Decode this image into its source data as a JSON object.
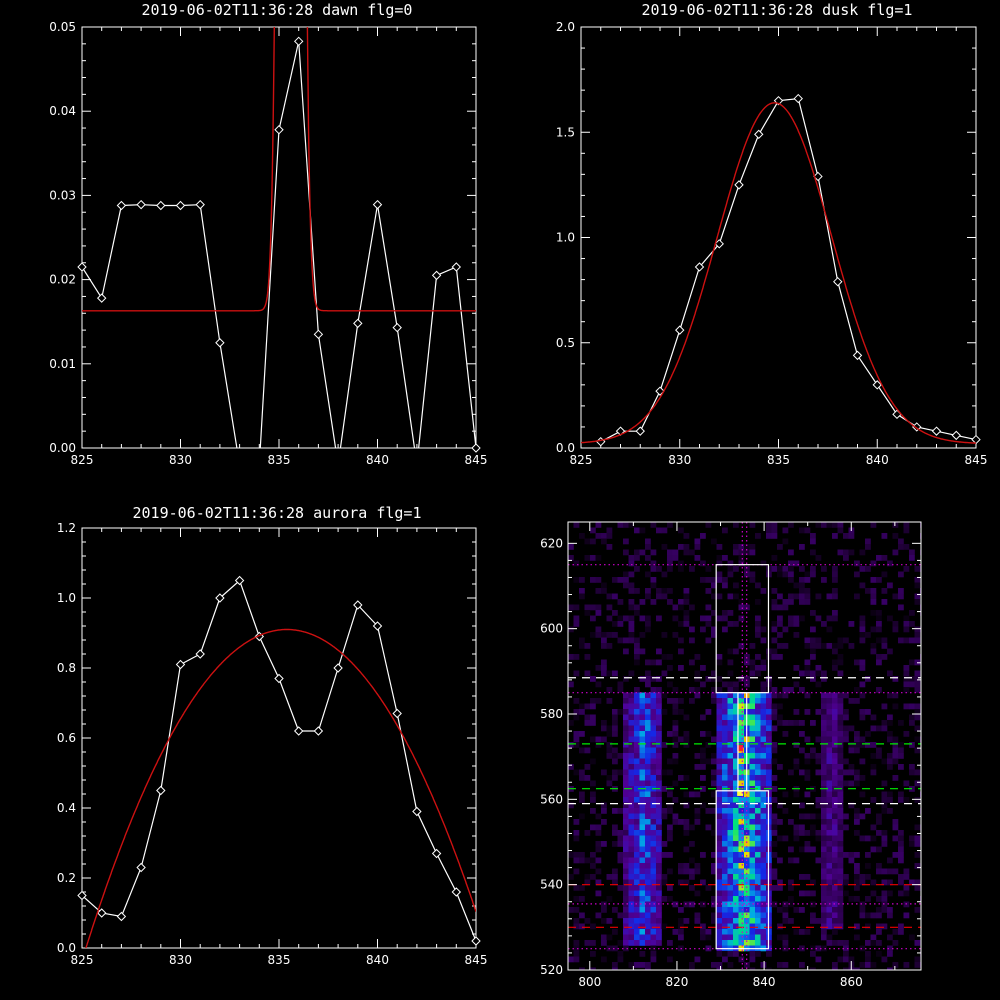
{
  "colors": {
    "background": "#000000",
    "axes": "#ffffff",
    "data": "#ffffff",
    "fit": "#cc1111"
  },
  "charts": {
    "dawn": {
      "title": "2019-06-02T11:36:28 dawn flg=0"
    },
    "dusk": {
      "title": "2019-06-02T11:36:28 dusk flg=1"
    },
    "aurora": {
      "title": "2019-06-02T11:36:28 aurora flg=1"
    },
    "image": {
      "title": ""
    }
  },
  "chart_data": [
    {
      "id": "dawn",
      "type": "line",
      "title": "2019-06-02T11:36:28 dawn flg=0",
      "xlim": [
        825,
        845
      ],
      "ylim": [
        0,
        0.05
      ],
      "xticks": [
        825,
        830,
        835,
        840,
        845
      ],
      "yticks": [
        0.0,
        0.01,
        0.02,
        0.03,
        0.04,
        0.05
      ],
      "ytick_labels": [
        "0.00",
        "0.01",
        "0.02",
        "0.03",
        "0.04",
        "0.05"
      ],
      "grid": false,
      "series": [
        {
          "style": "white line with diamond markers",
          "x": [
            825,
            826,
            827,
            828,
            829,
            830,
            831,
            832,
            833,
            834,
            835,
            836,
            837,
            838,
            839,
            840,
            841,
            842,
            843,
            844,
            845
          ],
          "y": [
            0.0215,
            0.0178,
            0.0288,
            0.0289,
            0.0288,
            0.0288,
            0.0289,
            0.0125,
            -0.002,
            -0.002,
            0.0378,
            0.0483,
            0.0135,
            -0.002,
            0.0148,
            0.0289,
            0.0143,
            -0.002,
            0.0205,
            0.0215,
            0.0
          ]
        },
        {
          "style": "red gaussian fit",
          "fit": {
            "baseline": 0.0163,
            "amplitude": 0.6,
            "center": 835.6,
            "sigma": 0.35
          }
        }
      ]
    },
    {
      "id": "dusk",
      "type": "line",
      "title": "2019-06-02T11:36:28 dusk flg=1",
      "xlim": [
        825,
        845
      ],
      "ylim": [
        0,
        2.0
      ],
      "xticks": [
        825,
        830,
        835,
        840,
        845
      ],
      "yticks": [
        0.0,
        0.5,
        1.0,
        1.5,
        2.0
      ],
      "ytick_labels": [
        "0.0",
        "0.5",
        "1.0",
        "1.5",
        "2.0"
      ],
      "grid": false,
      "series": [
        {
          "style": "white line with diamond markers",
          "x": [
            826,
            827,
            828,
            829,
            830,
            831,
            832,
            833,
            834,
            835,
            836,
            837,
            838,
            839,
            840,
            841,
            842,
            843,
            844,
            845
          ],
          "y": [
            0.03,
            0.08,
            0.08,
            0.27,
            0.56,
            0.86,
            0.97,
            1.25,
            1.49,
            1.65,
            1.66,
            1.29,
            0.79,
            0.44,
            0.3,
            0.16,
            0.1,
            0.08,
            0.06,
            0.04
          ]
        },
        {
          "style": "red gaussian fit",
          "fit": {
            "baseline": 0.02,
            "amplitude": 1.62,
            "center": 834.8,
            "sigma": 2.9
          }
        }
      ]
    },
    {
      "id": "aurora",
      "type": "line",
      "title": "2019-06-02T11:36:28 aurora flg=1",
      "xlim": [
        825,
        845
      ],
      "ylim": [
        0,
        1.2
      ],
      "xticks": [
        825,
        830,
        835,
        840,
        845
      ],
      "yticks": [
        0.0,
        0.2,
        0.4,
        0.6,
        0.8,
        1.0,
        1.2
      ],
      "ytick_labels": [
        "0.0",
        "0.2",
        "0.4",
        "0.6",
        "0.8",
        "1.0",
        "1.2"
      ],
      "grid": false,
      "series": [
        {
          "style": "white line with diamond markers",
          "x": [
            825,
            826,
            827,
            828,
            829,
            830,
            831,
            832,
            833,
            834,
            835,
            836,
            837,
            838,
            839,
            840,
            841,
            842,
            843,
            844,
            845
          ],
          "y": [
            0.15,
            0.1,
            0.09,
            0.23,
            0.45,
            0.81,
            0.84,
            1.0,
            1.05,
            0.89,
            0.77,
            0.62,
            0.62,
            0.8,
            0.98,
            0.92,
            0.67,
            0.39,
            0.27,
            0.16,
            0.02
          ]
        },
        {
          "style": "red parabolic fit",
          "fit": {
            "peak_x": 835.4,
            "peak_y": 0.91,
            "zero_x": 825.2
          }
        }
      ]
    },
    {
      "id": "image",
      "type": "heatmap",
      "title": "",
      "xlim": [
        795,
        876
      ],
      "ylim": [
        520,
        625
      ],
      "xticks": [
        800,
        820,
        840,
        860
      ],
      "yticks": [
        520,
        540,
        560,
        580,
        600,
        620
      ],
      "grid": false,
      "colormap": "black-purple-blue-cyan-green-yellow-red",
      "bright_columns": [
        {
          "x_range": [
            808,
            817
          ],
          "y_range": [
            526,
            585
          ],
          "peak_intensity": 0.55
        },
        {
          "x_range": [
            829,
            842
          ],
          "y_range": [
            525,
            585
          ],
          "peak_intensity": 0.8
        },
        {
          "x_range": [
            853,
            858
          ],
          "y_range": [
            530,
            585
          ],
          "peak_intensity": 0.3
        }
      ],
      "hot_pixels": [
        {
          "x": 834.5,
          "y": 572,
          "color": "#ff2020"
        },
        {
          "x": 834.5,
          "y": 561.5,
          "color": "#ffff40"
        }
      ],
      "boxes": [
        {
          "x": [
            829,
            841
          ],
          "y": [
            585,
            615
          ]
        },
        {
          "x": [
            834,
            836
          ],
          "y": [
            562,
            585
          ]
        },
        {
          "x": [
            829,
            841
          ],
          "y": [
            525,
            562
          ]
        }
      ],
      "hlines": [
        {
          "y": 615,
          "color": "#cc00cc",
          "style": "dotted"
        },
        {
          "y": 588.5,
          "color": "#ffffff",
          "style": "dashed"
        },
        {
          "y": 585,
          "color": "#cc00cc",
          "style": "dotted"
        },
        {
          "y": 573,
          "color": "#00ee00",
          "style": "dashed"
        },
        {
          "y": 562.5,
          "color": "#00ee00",
          "style": "dashed"
        },
        {
          "y": 559,
          "color": "#ffffff",
          "style": "dashed"
        },
        {
          "y": 540,
          "color": "#ee0000",
          "style": "dashed"
        },
        {
          "y": 535.5,
          "color": "#cc00cc",
          "style": "dotted"
        },
        {
          "y": 530,
          "color": "#ee0000",
          "style": "dashed"
        },
        {
          "y": 525,
          "color": "#cc00cc",
          "style": "dotted"
        }
      ],
      "vlines": [
        {
          "x": 835,
          "color": "#cc00cc",
          "style": "dotted"
        },
        {
          "x": 836,
          "color": "#cc00cc",
          "style": "dotted"
        }
      ]
    }
  ]
}
